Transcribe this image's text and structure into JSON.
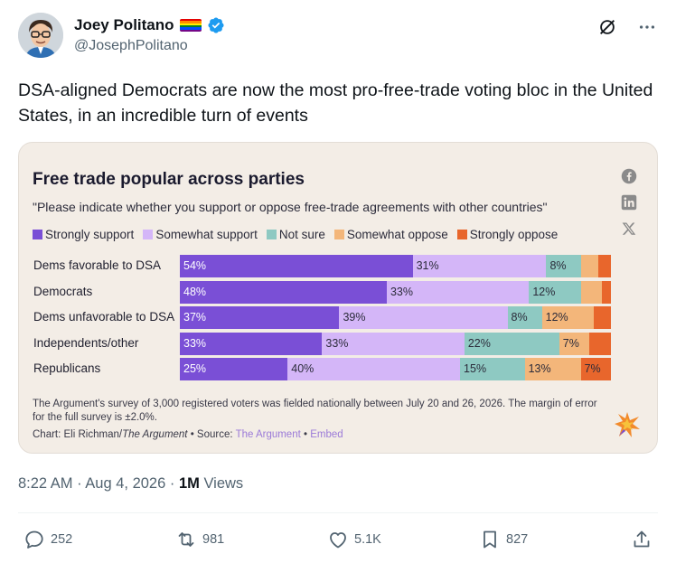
{
  "author": {
    "name": "Joey Politano",
    "handle": "@JosephPolitano"
  },
  "tweet": {
    "text": "DSA-aligned Democrats are now the most pro-free-trade voting bloc in the United States, in an incredible turn of events"
  },
  "card": {
    "chart_data": {
      "type": "bar",
      "orientation": "horizontal",
      "stacked": true,
      "title": "Free trade popular across parties",
      "subtitle": "\"Please indicate whether you support or oppose free-trade agreements with other countries\"",
      "categories": [
        "Dems favorable to DSA",
        "Democrats",
        "Dems unfavorable to DSA",
        "Independents/other",
        "Republicans"
      ],
      "series": [
        {
          "name": "Strongly support",
          "color": "#7a4fd6",
          "values": [
            54,
            48,
            37,
            33,
            25
          ]
        },
        {
          "name": "Somewhat support",
          "color": "#d4b6f8",
          "values": [
            31,
            33,
            39,
            33,
            40
          ]
        },
        {
          "name": "Not sure",
          "color": "#8ec9c2",
          "values": [
            8,
            12,
            8,
            22,
            15
          ]
        },
        {
          "name": "Somewhat oppose",
          "color": "#f3b67a",
          "values": [
            4,
            5,
            12,
            7,
            13
          ]
        },
        {
          "name": "Strongly oppose",
          "color": "#e8662c",
          "values": [
            3,
            2,
            4,
            5,
            7
          ]
        }
      ],
      "data_labels": [
        [
          "54%",
          "31%",
          "8%",
          "",
          ""
        ],
        [
          "48%",
          "33%",
          "12%",
          "",
          ""
        ],
        [
          "37%",
          "39%",
          "8%",
          "12%",
          ""
        ],
        [
          "33%",
          "33%",
          "22%",
          "7%",
          ""
        ],
        [
          "25%",
          "40%",
          "15%",
          "13%",
          "7%"
        ]
      ],
      "xlim": [
        0,
        100
      ]
    },
    "note": "The Argument's survey of 3,000 registered voters was fielded nationally between July 20 and 26, 2026. The margin of error for the full survey is ±2.0%.",
    "credit": {
      "prefix": "Chart: Eli Richman/",
      "publication": "The Argument",
      "source_label": " • Source: ",
      "source_link": "The Argument",
      "sep": " • ",
      "embed": "Embed"
    }
  },
  "meta": {
    "time": "8:22 AM · Aug 4, 2026 · ",
    "views": "1M",
    "views_label": " Views"
  },
  "actions": {
    "replies": "252",
    "reposts": "981",
    "likes": "5.1K",
    "bookmarks": "827"
  },
  "icons": {
    "verified": "verified-badge-icon",
    "grok": "grok-slash-icon",
    "more": "more-icon",
    "facebook": "facebook-icon",
    "linkedin": "linkedin-icon",
    "x": "x-icon"
  }
}
